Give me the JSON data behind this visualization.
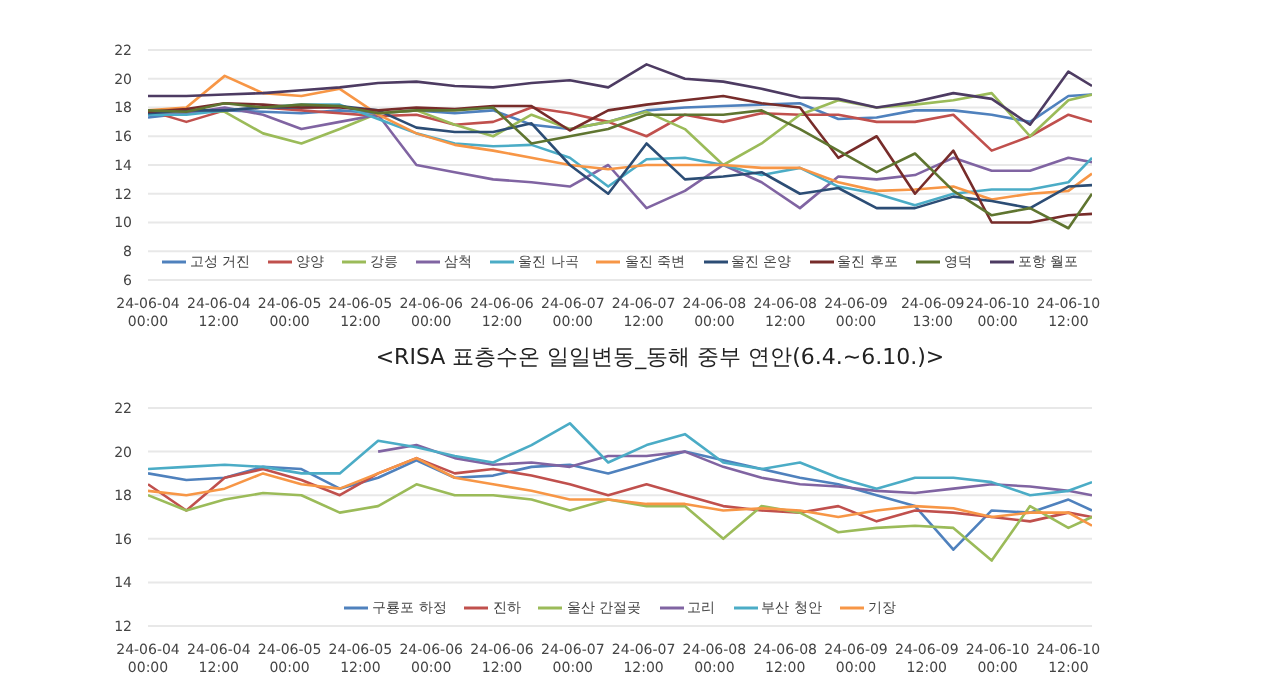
{
  "chart_data": [
    {
      "type": "line",
      "title": "<RISA 표층수온 일일변동_동해 중부 연안(6.4.~6.10.)>",
      "x": [
        "--06-04T00:00",
        "--06-04T06:30",
        "--06-04T13:00",
        "--06-04T19:30",
        "--06-05T02:00",
        "--06-05T08:30",
        "--06-05T15:00",
        "--06-05T21:30",
        "--06-06T04:00",
        "--06-06T10:30",
        "--06-06T17:00",
        "--06-06T23:30",
        "--06-07T06:00",
        "--06-07T12:30",
        "--06-07T19:00",
        "--06-08T01:30",
        "--06-08T08:00",
        "--06-08T14:30",
        "--06-08T21:00",
        "--06-09T03:30",
        "--06-09T10:00",
        "--06-09T16:30",
        "--06-09T23:00",
        "--06-10T05:30",
        "--06-10T12:00",
        "--06-10T16:00"
      ],
      "xlim": [
        "--06-04T00:00",
        "--06-10T16:00"
      ],
      "xticks": [
        {
          "value": "--06-04T00:00",
          "label": "24-06-04 00:00"
        },
        {
          "value": "--06-04T12:00",
          "label": "24-06-04 12:00"
        },
        {
          "value": "--06-05T00:00",
          "label": "24-06-05 00:00"
        },
        {
          "value": "--06-05T12:00",
          "label": "24-06-05 12:00"
        },
        {
          "value": "--06-06T00:00",
          "label": "24-06-06 00:00"
        },
        {
          "value": "--06-06T12:00",
          "label": "24-06-06 12:00"
        },
        {
          "value": "--06-07T00:00",
          "label": "24-06-07 00:00"
        },
        {
          "value": "--06-07T12:00",
          "label": "24-06-07 12:00"
        },
        {
          "value": "--06-08T00:00",
          "label": "24-06-08 00:00"
        },
        {
          "value": "--06-08T12:00",
          "label": "24-06-08 12:00"
        },
        {
          "value": "--06-09T00:00",
          "label": "24-06-09 00:00"
        },
        {
          "value": "--06-09T13:00",
          "label": "24-06-09 13:00"
        },
        {
          "value": "--06-10T00:00",
          "label": "24-06-10 00:00"
        },
        {
          "value": "--06-10T12:00",
          "label": "24-06-10 12:00"
        }
      ],
      "ylim": [
        6,
        22
      ],
      "yticks": [
        6,
        8,
        10,
        12,
        14,
        16,
        18,
        20,
        22
      ],
      "grid": "y",
      "legend": "bottom",
      "series": [
        {
          "name": "고성 거진",
          "color": "#4f81bd",
          "values": [
            17.3,
            17.6,
            17.8,
            17.7,
            17.6,
            17.8,
            17.6,
            17.8,
            17.6,
            17.8,
            16.8,
            16.5,
            17.0,
            17.8,
            18.0,
            18.1,
            18.2,
            18.3,
            17.2,
            17.3,
            17.8,
            17.8,
            17.5,
            17.0,
            18.8,
            18.9
          ]
        },
        {
          "name": "양양",
          "color": "#c0504d",
          "values": [
            17.8,
            17.0,
            17.8,
            18.0,
            17.8,
            17.6,
            17.4,
            17.5,
            16.8,
            17.0,
            18.0,
            17.6,
            17.0,
            16.0,
            17.5,
            17.0,
            17.6,
            17.5,
            17.5,
            17.0,
            17.0,
            17.5,
            15.0,
            16.0,
            17.5,
            17.0
          ]
        },
        {
          "name": "강릉",
          "color": "#9bbb59",
          "values": [
            17.8,
            17.8,
            17.7,
            16.2,
            15.5,
            16.5,
            17.6,
            17.8,
            16.8,
            16.0,
            17.5,
            16.5,
            17.0,
            17.7,
            16.5,
            14.0,
            15.5,
            17.5,
            18.5,
            18.0,
            18.2,
            18.5,
            19.0,
            16.0,
            18.5,
            18.9
          ]
        },
        {
          "name": "삼척",
          "color": "#8064a2",
          "values": [
            17.5,
            17.6,
            18.0,
            17.5,
            16.5,
            17.0,
            17.5,
            14.0,
            13.5,
            13.0,
            12.8,
            12.5,
            14.0,
            11.0,
            12.2,
            14.0,
            12.8,
            11.0,
            13.2,
            13.0,
            13.3,
            14.5,
            13.6,
            13.6,
            14.5,
            14.2
          ]
        },
        {
          "name": "울진 나곡",
          "color": "#4bacc6",
          "values": [
            17.5,
            17.5,
            17.8,
            18.0,
            18.2,
            18.2,
            17.2,
            16.2,
            15.5,
            15.3,
            15.4,
            14.5,
            12.5,
            14.4,
            14.5,
            14.0,
            13.3,
            13.8,
            12.5,
            12.0,
            11.2,
            12.0,
            12.3,
            12.3,
            12.8,
            14.5
          ]
        },
        {
          "name": "울진 죽변",
          "color": "#f79646",
          "values": [
            17.8,
            18.0,
            20.2,
            19.0,
            18.8,
            19.3,
            17.5,
            16.2,
            15.4,
            15.0,
            14.5,
            14.0,
            13.7,
            14.0,
            14.0,
            14.0,
            13.8,
            13.8,
            12.8,
            12.2,
            12.3,
            12.5,
            11.6,
            12.0,
            12.2,
            13.4
          ]
        },
        {
          "name": "울진 온양",
          "color": "#2c4d75",
          "values": [
            17.6,
            17.8,
            17.8,
            18.0,
            18.0,
            18.1,
            17.8,
            16.6,
            16.3,
            16.3,
            16.9,
            14.0,
            12.0,
            15.5,
            13.0,
            13.2,
            13.5,
            12.0,
            12.4,
            11.0,
            11.0,
            11.8,
            11.5,
            11.0,
            12.5,
            12.6
          ]
        },
        {
          "name": "울진 후포",
          "color": "#772c2a",
          "values": [
            17.7,
            17.9,
            18.3,
            18.2,
            18.0,
            18.0,
            17.8,
            18.0,
            17.9,
            18.1,
            18.1,
            16.4,
            17.8,
            18.2,
            18.5,
            18.8,
            18.3,
            18.0,
            14.5,
            16.0,
            12.0,
            15.0,
            10.0,
            10.0,
            10.5,
            10.6
          ]
        },
        {
          "name": "영덕",
          "color": "#5f7530",
          "values": [
            17.8,
            17.7,
            18.3,
            18.0,
            18.2,
            18.1,
            17.6,
            17.8,
            17.8,
            18.0,
            15.5,
            16.0,
            16.5,
            17.5,
            17.5,
            17.5,
            17.8,
            16.5,
            15.0,
            13.5,
            14.8,
            12.2,
            10.5,
            11.0,
            9.6,
            12.0
          ]
        },
        {
          "name": "포항 월포",
          "color": "#4d3b62",
          "values": [
            18.8,
            18.8,
            18.9,
            19.0,
            19.2,
            19.4,
            19.7,
            19.8,
            19.5,
            19.4,
            19.7,
            19.9,
            19.4,
            21.0,
            20.0,
            19.8,
            19.3,
            18.7,
            18.6,
            18.0,
            18.4,
            19.0,
            18.6,
            16.8,
            20.5,
            19.5
          ]
        }
      ]
    },
    {
      "type": "line",
      "x": [
        "--06-04T00:00",
        "--06-04T06:30",
        "--06-04T13:00",
        "--06-04T19:30",
        "--06-05T02:00",
        "--06-05T08:30",
        "--06-05T15:00",
        "--06-05T21:30",
        "--06-06T04:00",
        "--06-06T10:30",
        "--06-06T17:00",
        "--06-06T23:30",
        "--06-07T06:00",
        "--06-07T12:30",
        "--06-07T19:00",
        "--06-08T01:30",
        "--06-08T08:00",
        "--06-08T14:30",
        "--06-08T21:00",
        "--06-09T03:30",
        "--06-09T10:00",
        "--06-09T16:30",
        "--06-09T23:00",
        "--06-10T05:30",
        "--06-10T12:00",
        "--06-10T16:00"
      ],
      "xlim": [
        "--06-04T00:00",
        "--06-10T16:00"
      ],
      "xticks": [
        {
          "value": "--06-04T00:00",
          "label": "24-06-04 00:00"
        },
        {
          "value": "--06-04T12:00",
          "label": "24-06-04 12:00"
        },
        {
          "value": "--06-05T00:00",
          "label": "24-06-05 00:00"
        },
        {
          "value": "--06-05T12:00",
          "label": "24-06-05 12:00"
        },
        {
          "value": "--06-06T00:00",
          "label": "24-06-06 00:00"
        },
        {
          "value": "--06-06T12:00",
          "label": "24-06-06 12:00"
        },
        {
          "value": "--06-07T00:00",
          "label": "24-06-07 00:00"
        },
        {
          "value": "--06-07T12:00",
          "label": "24-06-07 12:00"
        },
        {
          "value": "--06-08T00:00",
          "label": "24-06-08 00:00"
        },
        {
          "value": "--06-08T12:00",
          "label": "24-06-08 12:00"
        },
        {
          "value": "--06-09T00:00",
          "label": "24-06-09 00:00"
        },
        {
          "value": "--06-09T12:00",
          "label": "24-06-09 12:00"
        },
        {
          "value": "--06-10T00:00",
          "label": "24-06-10 00:00"
        },
        {
          "value": "--06-10T12:00",
          "label": "24-06-10 12:00"
        }
      ],
      "ylim": [
        12,
        22
      ],
      "yticks": [
        12,
        14,
        16,
        18,
        20,
        22
      ],
      "grid": "y",
      "legend": "bottom",
      "series": [
        {
          "name": "구룡포 하정",
          "color": "#4f81bd",
          "values": [
            19.0,
            18.7,
            18.8,
            19.3,
            19.2,
            18.3,
            18.8,
            19.6,
            18.8,
            18.9,
            19.3,
            19.4,
            19.0,
            19.5,
            20.0,
            19.6,
            19.2,
            18.8,
            18.5,
            18.0,
            17.5,
            15.5,
            17.3,
            17.2,
            17.8,
            17.3
          ]
        },
        {
          "name": "진하",
          "color": "#c0504d",
          "values": [
            18.5,
            17.3,
            18.8,
            19.2,
            18.7,
            18.0,
            19.0,
            19.7,
            19.0,
            19.2,
            18.9,
            18.5,
            18.0,
            18.5,
            18.0,
            17.5,
            17.3,
            17.2,
            17.5,
            16.8,
            17.3,
            17.2,
            17.0,
            16.8,
            17.2,
            17.0
          ]
        },
        {
          "name": "울산 간절곶",
          "color": "#9bbb59",
          "values": [
            18.0,
            17.3,
            17.8,
            18.1,
            18.0,
            17.2,
            17.5,
            18.5,
            18.0,
            18.0,
            17.8,
            17.3,
            17.8,
            17.5,
            17.5,
            16.0,
            17.5,
            17.2,
            16.3,
            16.5,
            16.6,
            16.5,
            15.0,
            17.5,
            16.5,
            17.0
          ]
        },
        {
          "name": "고리",
          "color": "#8064a2",
          "values": [
            null,
            null,
            null,
            null,
            null,
            null,
            20.0,
            20.3,
            19.7,
            19.4,
            19.5,
            19.3,
            19.8,
            19.8,
            20.0,
            19.3,
            18.8,
            18.5,
            18.4,
            18.2,
            18.1,
            18.3,
            18.5,
            18.4,
            18.2,
            18.0
          ]
        },
        {
          "name": "부산 청안",
          "color": "#4bacc6",
          "values": [
            19.2,
            19.3,
            19.4,
            19.3,
            19.0,
            19.0,
            20.5,
            20.2,
            19.8,
            19.5,
            20.3,
            21.3,
            19.5,
            20.3,
            20.8,
            19.5,
            19.2,
            19.5,
            18.8,
            18.3,
            18.8,
            18.8,
            18.6,
            18.0,
            18.2,
            18.6
          ]
        },
        {
          "name": "기장",
          "color": "#f79646",
          "values": [
            18.2,
            18.0,
            18.3,
            19.0,
            18.5,
            18.3,
            19.0,
            19.7,
            18.8,
            18.5,
            18.2,
            17.8,
            17.8,
            17.6,
            17.6,
            17.3,
            17.4,
            17.3,
            17.0,
            17.3,
            17.5,
            17.4,
            17.0,
            17.2,
            17.2,
            16.6
          ]
        }
      ]
    }
  ]
}
